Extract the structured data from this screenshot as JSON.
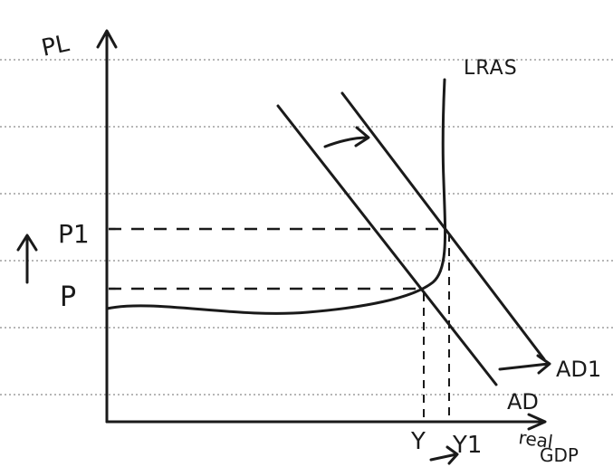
{
  "diagram": {
    "y_axis_label": "PL",
    "x_axis_label_line1": "real",
    "x_axis_label_line2": "GDP",
    "curves": {
      "lras": "LRAS",
      "ad": "AD",
      "ad1": "AD1"
    },
    "price_levels": {
      "p1": "P1",
      "p": "P"
    },
    "output_levels": {
      "y": "Y",
      "y1": "Y1"
    }
  },
  "colors": {
    "ink": "#1a1a1a",
    "paper": "#ffffff",
    "rule_line": "#8a8a8a"
  }
}
